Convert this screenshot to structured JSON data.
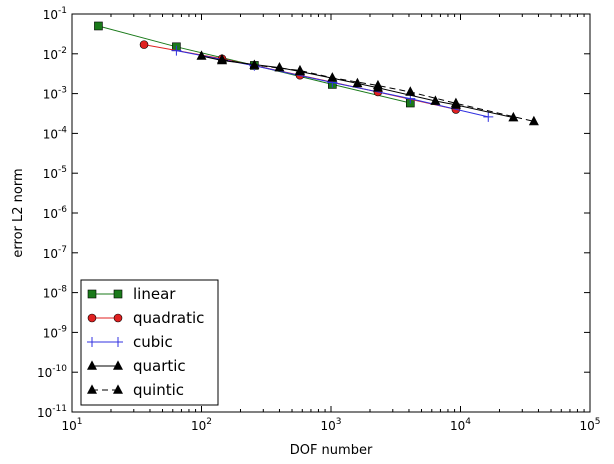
{
  "chart_data": {
    "type": "line",
    "xlabel": "DOF number",
    "ylabel": "error L2 norm",
    "xscale": "log",
    "yscale": "log",
    "xlim": [
      10,
      100000
    ],
    "ylim": [
      1e-11,
      0.1
    ],
    "x_ticks": [
      {
        "base": "10",
        "exp": "1"
      },
      {
        "base": "10",
        "exp": "2"
      },
      {
        "base": "10",
        "exp": "3"
      },
      {
        "base": "10",
        "exp": "4"
      },
      {
        "base": "10",
        "exp": "5"
      }
    ],
    "y_ticks": [
      {
        "base": "10",
        "exp": "-11"
      },
      {
        "base": "10",
        "exp": "-10"
      },
      {
        "base": "10",
        "exp": "-9"
      },
      {
        "base": "10",
        "exp": "-8"
      },
      {
        "base": "10",
        "exp": "-7"
      },
      {
        "base": "10",
        "exp": "-6"
      },
      {
        "base": "10",
        "exp": "-5"
      },
      {
        "base": "10",
        "exp": "-4"
      },
      {
        "base": "10",
        "exp": "-3"
      },
      {
        "base": "10",
        "exp": "-2"
      },
      {
        "base": "10",
        "exp": "-1"
      }
    ],
    "grid": false,
    "legend_position": "lower-left",
    "series": [
      {
        "name": "linear",
        "color": "#1a7a1a",
        "marker": "square",
        "dashed": false,
        "x": [
          16,
          64,
          256,
          1024,
          4096
        ],
        "y": [
          0.05,
          0.015,
          0.0051,
          0.0017,
          0.00058
        ]
      },
      {
        "name": "quadratic",
        "color": "#e02020",
        "marker": "circle",
        "dashed": false,
        "x": [
          36,
          144,
          576,
          2304,
          9216
        ],
        "y": [
          0.017,
          0.0075,
          0.0029,
          0.0011,
          0.0004
        ]
      },
      {
        "name": "cubic",
        "color": "#3030e0",
        "marker": "plus",
        "dashed": false,
        "x": [
          64,
          256,
          1024,
          4096,
          16384
        ],
        "y": [
          0.012,
          0.005,
          0.0019,
          0.00075,
          0.00026
        ]
      },
      {
        "name": "quartic",
        "color": "#000000",
        "marker": "triangle",
        "dashed": false,
        "x": [
          100,
          144,
          400,
          576,
          1600,
          2304,
          6400,
          9216,
          25600
        ],
        "y": [
          0.0088,
          0.0068,
          0.0045,
          0.0036,
          0.0018,
          0.0014,
          0.00065,
          0.00052,
          0.00025
        ]
      },
      {
        "name": "quintic",
        "color": "#000000",
        "marker": "triangle",
        "dashed": true,
        "x": [
          144,
          256,
          576,
          1024,
          2304,
          4096,
          9216,
          36864
        ],
        "y": [
          0.0072,
          0.0052,
          0.0038,
          0.0025,
          0.0016,
          0.0011,
          0.00057,
          0.0002
        ]
      }
    ]
  }
}
